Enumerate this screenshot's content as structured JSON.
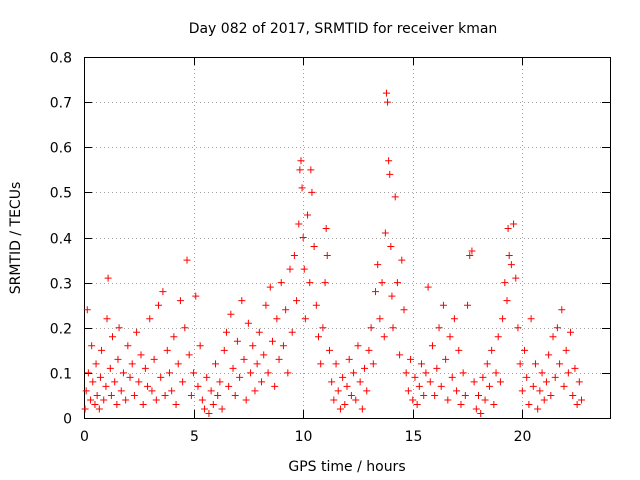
{
  "chart_data": {
    "type": "scatter",
    "title": "Day 082 of 2017, SRMTID for receiver kman",
    "xlabel": "GPS time / hours",
    "ylabel": "SRMTID / TECUs",
    "xlim": [
      0,
      24
    ],
    "ylim": [
      0,
      0.8
    ],
    "x_ticks": [
      0,
      5,
      10,
      15,
      20
    ],
    "y_ticks": [
      0,
      0.1,
      0.2,
      0.3,
      0.4,
      0.5,
      0.6,
      0.7,
      0.8
    ],
    "x_tick_labels": [
      "0",
      "5",
      "10",
      "15",
      "20"
    ],
    "y_tick_labels": [
      "0",
      "0.1",
      "0.2",
      "0.3",
      "0.4",
      "0.5",
      "0.6",
      "0.7",
      "0.8"
    ],
    "grid": true,
    "marker": "+",
    "color": "#ff0000",
    "series": [
      {
        "name": "SRMTID",
        "points": [
          [
            0.05,
            0.02
          ],
          [
            0.1,
            0.06
          ],
          [
            0.15,
            0.24
          ],
          [
            0.2,
            0.1
          ],
          [
            0.3,
            0.04
          ],
          [
            0.35,
            0.16
          ],
          [
            0.4,
            0.08
          ],
          [
            0.5,
            0.03
          ],
          [
            0.55,
            0.12
          ],
          [
            0.6,
            0.05
          ],
          [
            0.7,
            0.02
          ],
          [
            0.75,
            0.09
          ],
          [
            0.8,
            0.15
          ],
          [
            0.9,
            0.04
          ],
          [
            1.0,
            0.07
          ],
          [
            1.05,
            0.22
          ],
          [
            1.1,
            0.31
          ],
          [
            1.2,
            0.11
          ],
          [
            1.25,
            0.05
          ],
          [
            1.3,
            0.18
          ],
          [
            1.4,
            0.08
          ],
          [
            1.5,
            0.03
          ],
          [
            1.55,
            0.13
          ],
          [
            1.6,
            0.2
          ],
          [
            1.7,
            0.06
          ],
          [
            1.8,
            0.1
          ],
          [
            1.9,
            0.04
          ],
          [
            2.0,
            0.16
          ],
          [
            2.1,
            0.09
          ],
          [
            2.2,
            0.12
          ],
          [
            2.3,
            0.05
          ],
          [
            2.4,
            0.19
          ],
          [
            2.5,
            0.08
          ],
          [
            2.6,
            0.14
          ],
          [
            2.7,
            0.03
          ],
          [
            2.8,
            0.11
          ],
          [
            2.9,
            0.07
          ],
          [
            3.0,
            0.22
          ],
          [
            3.1,
            0.06
          ],
          [
            3.2,
            0.13
          ],
          [
            3.3,
            0.04
          ],
          [
            3.4,
            0.25
          ],
          [
            3.5,
            0.09
          ],
          [
            3.6,
            0.28
          ],
          [
            3.7,
            0.05
          ],
          [
            3.8,
            0.15
          ],
          [
            3.9,
            0.1
          ],
          [
            4.0,
            0.06
          ],
          [
            4.1,
            0.18
          ],
          [
            4.2,
            0.03
          ],
          [
            4.3,
            0.12
          ],
          [
            4.4,
            0.26
          ],
          [
            4.5,
            0.08
          ],
          [
            4.6,
            0.2
          ],
          [
            4.7,
            0.35
          ],
          [
            4.8,
            0.14
          ],
          [
            4.9,
            0.05
          ],
          [
            5.0,
            0.1
          ],
          [
            5.1,
            0.27
          ],
          [
            5.2,
            0.07
          ],
          [
            5.3,
            0.16
          ],
          [
            5.4,
            0.04
          ],
          [
            5.5,
            0.02
          ],
          [
            5.6,
            0.09
          ],
          [
            5.7,
            0.01
          ],
          [
            5.8,
            0.06
          ],
          [
            5.9,
            0.03
          ],
          [
            6.0,
            0.12
          ],
          [
            6.1,
            0.05
          ],
          [
            6.2,
            0.08
          ],
          [
            6.3,
            0.02
          ],
          [
            6.4,
            0.15
          ],
          [
            6.5,
            0.19
          ],
          [
            6.6,
            0.07
          ],
          [
            6.7,
            0.23
          ],
          [
            6.8,
            0.11
          ],
          [
            6.9,
            0.05
          ],
          [
            7.0,
            0.17
          ],
          [
            7.1,
            0.09
          ],
          [
            7.2,
            0.26
          ],
          [
            7.3,
            0.13
          ],
          [
            7.4,
            0.04
          ],
          [
            7.5,
            0.21
          ],
          [
            7.6,
            0.1
          ],
          [
            7.7,
            0.16
          ],
          [
            7.8,
            0.06
          ],
          [
            7.9,
            0.12
          ],
          [
            8.0,
            0.19
          ],
          [
            8.1,
            0.08
          ],
          [
            8.2,
            0.14
          ],
          [
            8.3,
            0.25
          ],
          [
            8.4,
            0.1
          ],
          [
            8.5,
            0.29
          ],
          [
            8.6,
            0.17
          ],
          [
            8.7,
            0.07
          ],
          [
            8.8,
            0.22
          ],
          [
            8.9,
            0.13
          ],
          [
            9.0,
            0.3
          ],
          [
            9.1,
            0.16
          ],
          [
            9.2,
            0.24
          ],
          [
            9.3,
            0.1
          ],
          [
            9.4,
            0.33
          ],
          [
            9.5,
            0.19
          ],
          [
            9.6,
            0.36
          ],
          [
            9.7,
            0.26
          ],
          [
            9.8,
            0.43
          ],
          [
            9.85,
            0.55
          ],
          [
            9.9,
            0.57
          ],
          [
            9.95,
            0.51
          ],
          [
            10.0,
            0.4
          ],
          [
            10.05,
            0.33
          ],
          [
            10.1,
            0.22
          ],
          [
            10.2,
            0.45
          ],
          [
            10.3,
            0.3
          ],
          [
            10.35,
            0.55
          ],
          [
            10.4,
            0.5
          ],
          [
            10.5,
            0.38
          ],
          [
            10.6,
            0.25
          ],
          [
            10.7,
            0.18
          ],
          [
            10.8,
            0.12
          ],
          [
            10.9,
            0.2
          ],
          [
            11.0,
            0.3
          ],
          [
            11.05,
            0.42
          ],
          [
            11.1,
            0.36
          ],
          [
            11.2,
            0.15
          ],
          [
            11.3,
            0.08
          ],
          [
            11.4,
            0.04
          ],
          [
            11.5,
            0.12
          ],
          [
            11.6,
            0.06
          ],
          [
            11.7,
            0.02
          ],
          [
            11.8,
            0.09
          ],
          [
            11.9,
            0.03
          ],
          [
            12.0,
            0.07
          ],
          [
            12.1,
            0.13
          ],
          [
            12.2,
            0.05
          ],
          [
            12.3,
            0.1
          ],
          [
            12.4,
            0.04
          ],
          [
            12.5,
            0.16
          ],
          [
            12.6,
            0.08
          ],
          [
            12.7,
            0.02
          ],
          [
            12.8,
            0.11
          ],
          [
            12.9,
            0.06
          ],
          [
            13.0,
            0.15
          ],
          [
            13.1,
            0.2
          ],
          [
            13.2,
            0.12
          ],
          [
            13.3,
            0.28
          ],
          [
            13.4,
            0.34
          ],
          [
            13.5,
            0.22
          ],
          [
            13.6,
            0.3
          ],
          [
            13.7,
            0.18
          ],
          [
            13.75,
            0.41
          ],
          [
            13.8,
            0.72
          ],
          [
            13.85,
            0.7
          ],
          [
            13.9,
            0.57
          ],
          [
            13.95,
            0.54
          ],
          [
            14.0,
            0.38
          ],
          [
            14.05,
            0.27
          ],
          [
            14.1,
            0.2
          ],
          [
            14.2,
            0.49
          ],
          [
            14.3,
            0.3
          ],
          [
            14.4,
            0.14
          ],
          [
            14.5,
            0.35
          ],
          [
            14.6,
            0.24
          ],
          [
            14.7,
            0.1
          ],
          [
            14.8,
            0.06
          ],
          [
            14.9,
            0.13
          ],
          [
            15.0,
            0.04
          ],
          [
            15.1,
            0.09
          ],
          [
            15.2,
            0.03
          ],
          [
            15.3,
            0.07
          ],
          [
            15.4,
            0.12
          ],
          [
            15.5,
            0.05
          ],
          [
            15.6,
            0.1
          ],
          [
            15.7,
            0.29
          ],
          [
            15.8,
            0.08
          ],
          [
            15.9,
            0.16
          ],
          [
            16.0,
            0.05
          ],
          [
            16.1,
            0.11
          ],
          [
            16.2,
            0.2
          ],
          [
            16.3,
            0.07
          ],
          [
            16.4,
            0.25
          ],
          [
            16.5,
            0.13
          ],
          [
            16.6,
            0.04
          ],
          [
            16.7,
            0.18
          ],
          [
            16.8,
            0.09
          ],
          [
            16.9,
            0.22
          ],
          [
            17.0,
            0.06
          ],
          [
            17.1,
            0.15
          ],
          [
            17.2,
            0.03
          ],
          [
            17.3,
            0.1
          ],
          [
            17.4,
            0.05
          ],
          [
            17.5,
            0.25
          ],
          [
            17.6,
            0.36
          ],
          [
            17.7,
            0.37
          ],
          [
            17.8,
            0.08
          ],
          [
            17.9,
            0.02
          ],
          [
            18.0,
            0.05
          ],
          [
            18.1,
            0.01
          ],
          [
            18.2,
            0.09
          ],
          [
            18.3,
            0.04
          ],
          [
            18.4,
            0.12
          ],
          [
            18.5,
            0.07
          ],
          [
            18.6,
            0.15
          ],
          [
            18.7,
            0.03
          ],
          [
            18.8,
            0.1
          ],
          [
            18.9,
            0.18
          ],
          [
            19.0,
            0.08
          ],
          [
            19.1,
            0.22
          ],
          [
            19.2,
            0.3
          ],
          [
            19.3,
            0.26
          ],
          [
            19.35,
            0.42
          ],
          [
            19.4,
            0.36
          ],
          [
            19.5,
            0.34
          ],
          [
            19.6,
            0.43
          ],
          [
            19.7,
            0.31
          ],
          [
            19.8,
            0.2
          ],
          [
            19.9,
            0.12
          ],
          [
            20.0,
            0.06
          ],
          [
            20.1,
            0.15
          ],
          [
            20.2,
            0.09
          ],
          [
            20.3,
            0.03
          ],
          [
            20.4,
            0.22
          ],
          [
            20.5,
            0.07
          ],
          [
            20.6,
            0.12
          ],
          [
            20.7,
            0.02
          ],
          [
            20.8,
            0.06
          ],
          [
            20.9,
            0.1
          ],
          [
            21.0,
            0.04
          ],
          [
            21.1,
            0.08
          ],
          [
            21.2,
            0.14
          ],
          [
            21.3,
            0.05
          ],
          [
            21.4,
            0.18
          ],
          [
            21.5,
            0.09
          ],
          [
            21.6,
            0.2
          ],
          [
            21.7,
            0.12
          ],
          [
            21.8,
            0.24
          ],
          [
            21.9,
            0.07
          ],
          [
            22.0,
            0.15
          ],
          [
            22.1,
            0.1
          ],
          [
            22.2,
            0.19
          ],
          [
            22.3,
            0.05
          ],
          [
            22.4,
            0.11
          ],
          [
            22.5,
            0.03
          ],
          [
            22.6,
            0.08
          ],
          [
            22.7,
            0.04
          ]
        ]
      }
    ]
  }
}
